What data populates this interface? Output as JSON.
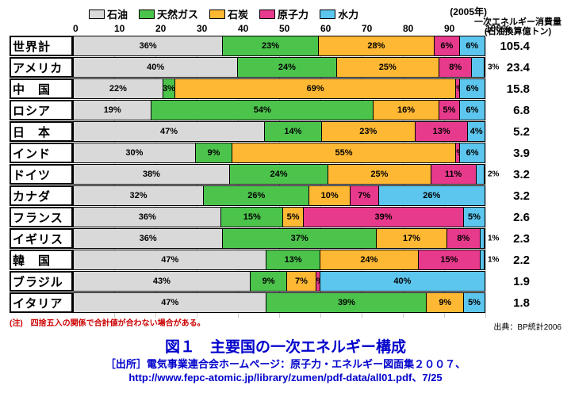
{
  "year_label": "(2005年)",
  "unit_label_1": "一次エネルギー消費量",
  "unit_label_2": "(石油換算億トン)",
  "legend": [
    {
      "label": "石油",
      "color": "#d9d9d9"
    },
    {
      "label": "天然ガス",
      "color": "#4cc44c"
    },
    {
      "label": "石炭",
      "color": "#ffb833"
    },
    {
      "label": "原子力",
      "color": "#e83a8c"
    },
    {
      "label": "水力",
      "color": "#5cc6ee"
    }
  ],
  "axis_ticks": [
    "0",
    "10",
    "20",
    "30",
    "40",
    "50",
    "60",
    "70",
    "80",
    "90",
    "100"
  ],
  "colors": {
    "oil": "#d9d9d9",
    "gas": "#4cc44c",
    "coal": "#ffb833",
    "nuc": "#e83a8c",
    "hyd": "#5cc6ee"
  },
  "rows": [
    {
      "label": "世界計",
      "value": "105.4",
      "seg": [
        {
          "k": "oil",
          "p": 36,
          "t": "36%"
        },
        {
          "k": "gas",
          "p": 23,
          "t": "23%"
        },
        {
          "k": "coal",
          "p": 28,
          "t": "28%"
        },
        {
          "k": "nuc",
          "p": 6,
          "t": "6%"
        },
        {
          "k": "hyd",
          "p": 6,
          "t": "6%"
        }
      ]
    },
    {
      "label": "アメリカ",
      "value": "23.4",
      "seg": [
        {
          "k": "oil",
          "p": 40,
          "t": "40%"
        },
        {
          "k": "gas",
          "p": 24,
          "t": "24%"
        },
        {
          "k": "coal",
          "p": 25,
          "t": "25%"
        },
        {
          "k": "nuc",
          "p": 8,
          "t": "8%"
        },
        {
          "k": "hyd",
          "p": 3,
          "t": "",
          "ext": "3%"
        }
      ]
    },
    {
      "label": "中　国",
      "value": "15.8",
      "seg": [
        {
          "k": "oil",
          "p": 22,
          "t": "22%"
        },
        {
          "k": "gas",
          "p": 3,
          "t": "3%"
        },
        {
          "k": "coal",
          "p": 69,
          "t": "69%"
        },
        {
          "k": "nuc",
          "p": 1,
          "t": "1%"
        },
        {
          "k": "hyd",
          "p": 6,
          "t": "6%"
        }
      ]
    },
    {
      "label": "ロシア",
      "value": "6.8",
      "seg": [
        {
          "k": "oil",
          "p": 19,
          "t": "19%"
        },
        {
          "k": "gas",
          "p": 54,
          "t": "54%"
        },
        {
          "k": "coal",
          "p": 16,
          "t": "16%"
        },
        {
          "k": "nuc",
          "p": 5,
          "t": "5%"
        },
        {
          "k": "hyd",
          "p": 6,
          "t": "6%"
        }
      ]
    },
    {
      "label": "日　本",
      "value": "5.2",
      "seg": [
        {
          "k": "oil",
          "p": 47,
          "t": "47%"
        },
        {
          "k": "gas",
          "p": 14,
          "t": "14%"
        },
        {
          "k": "coal",
          "p": 23,
          "t": "23%"
        },
        {
          "k": "nuc",
          "p": 13,
          "t": "13%"
        },
        {
          "k": "hyd",
          "p": 4,
          "t": "4%"
        }
      ]
    },
    {
      "label": "インド",
      "value": "3.9",
      "seg": [
        {
          "k": "oil",
          "p": 30,
          "t": "30%"
        },
        {
          "k": "gas",
          "p": 9,
          "t": "9%"
        },
        {
          "k": "coal",
          "p": 55,
          "t": "55%"
        },
        {
          "k": "nuc",
          "p": 1,
          "t": "1%"
        },
        {
          "k": "hyd",
          "p": 6,
          "t": "6%"
        }
      ]
    },
    {
      "label": "ドイツ",
      "value": "3.2",
      "seg": [
        {
          "k": "oil",
          "p": 38,
          "t": "38%"
        },
        {
          "k": "gas",
          "p": 24,
          "t": "24%"
        },
        {
          "k": "coal",
          "p": 25,
          "t": "25%"
        },
        {
          "k": "nuc",
          "p": 11,
          "t": "11%"
        },
        {
          "k": "hyd",
          "p": 2,
          "t": "",
          "ext": "2%"
        }
      ]
    },
    {
      "label": "カナダ",
      "value": "3.2",
      "seg": [
        {
          "k": "oil",
          "p": 32,
          "t": "32%"
        },
        {
          "k": "gas",
          "p": 26,
          "t": "26%"
        },
        {
          "k": "coal",
          "p": 10,
          "t": "10%"
        },
        {
          "k": "nuc",
          "p": 7,
          "t": "7%"
        },
        {
          "k": "hyd",
          "p": 26,
          "t": "26%"
        }
      ]
    },
    {
      "label": "フランス",
      "value": "2.6",
      "seg": [
        {
          "k": "oil",
          "p": 36,
          "t": "36%"
        },
        {
          "k": "gas",
          "p": 15,
          "t": "15%"
        },
        {
          "k": "coal",
          "p": 5,
          "t": "5%"
        },
        {
          "k": "nuc",
          "p": 39,
          "t": "39%"
        },
        {
          "k": "hyd",
          "p": 5,
          "t": "5%"
        }
      ]
    },
    {
      "label": "イギリス",
      "value": "2.3",
      "seg": [
        {
          "k": "oil",
          "p": 36,
          "t": "36%"
        },
        {
          "k": "gas",
          "p": 37,
          "t": "37%"
        },
        {
          "k": "coal",
          "p": 17,
          "t": "17%"
        },
        {
          "k": "nuc",
          "p": 8,
          "t": "8%"
        },
        {
          "k": "hyd",
          "p": 1,
          "t": "",
          "ext": "1%"
        }
      ]
    },
    {
      "label": "韓　国",
      "value": "2.2",
      "seg": [
        {
          "k": "oil",
          "p": 47,
          "t": "47%"
        },
        {
          "k": "gas",
          "p": 13,
          "t": "13%"
        },
        {
          "k": "coal",
          "p": 24,
          "t": "24%"
        },
        {
          "k": "nuc",
          "p": 15,
          "t": "15%"
        },
        {
          "k": "hyd",
          "p": 1,
          "t": "",
          "ext": "1%"
        }
      ]
    },
    {
      "label": "ブラジル",
      "value": "1.9",
      "seg": [
        {
          "k": "oil",
          "p": 43,
          "t": "43%"
        },
        {
          "k": "gas",
          "p": 9,
          "t": "9%"
        },
        {
          "k": "coal",
          "p": 7,
          "t": "7%"
        },
        {
          "k": "nuc",
          "p": 1,
          "t": "1%"
        },
        {
          "k": "hyd",
          "p": 40,
          "t": "40%"
        }
      ]
    },
    {
      "label": "イタリア",
      "value": "1.8",
      "seg": [
        {
          "k": "oil",
          "p": 47,
          "t": "47%"
        },
        {
          "k": "gas",
          "p": 39,
          "t": "39%"
        },
        {
          "k": "coal",
          "p": 9,
          "t": "9%"
        },
        {
          "k": "hyd",
          "p": 5,
          "t": "5%"
        }
      ]
    }
  ],
  "note": "(注)　四捨五入の関係で合計値が合わない場合がある。",
  "source": "出典：BP統計2006",
  "title": "図１　主要国の一次エネルギー構成",
  "cite_1": "［出所］電気事業連合会ホームページ：原子力・エネルギー図面集２００７、",
  "cite_2": "http://www.fepc-atomic.jp/library/zumen/pdf-data/all01.pdf、7/25"
}
